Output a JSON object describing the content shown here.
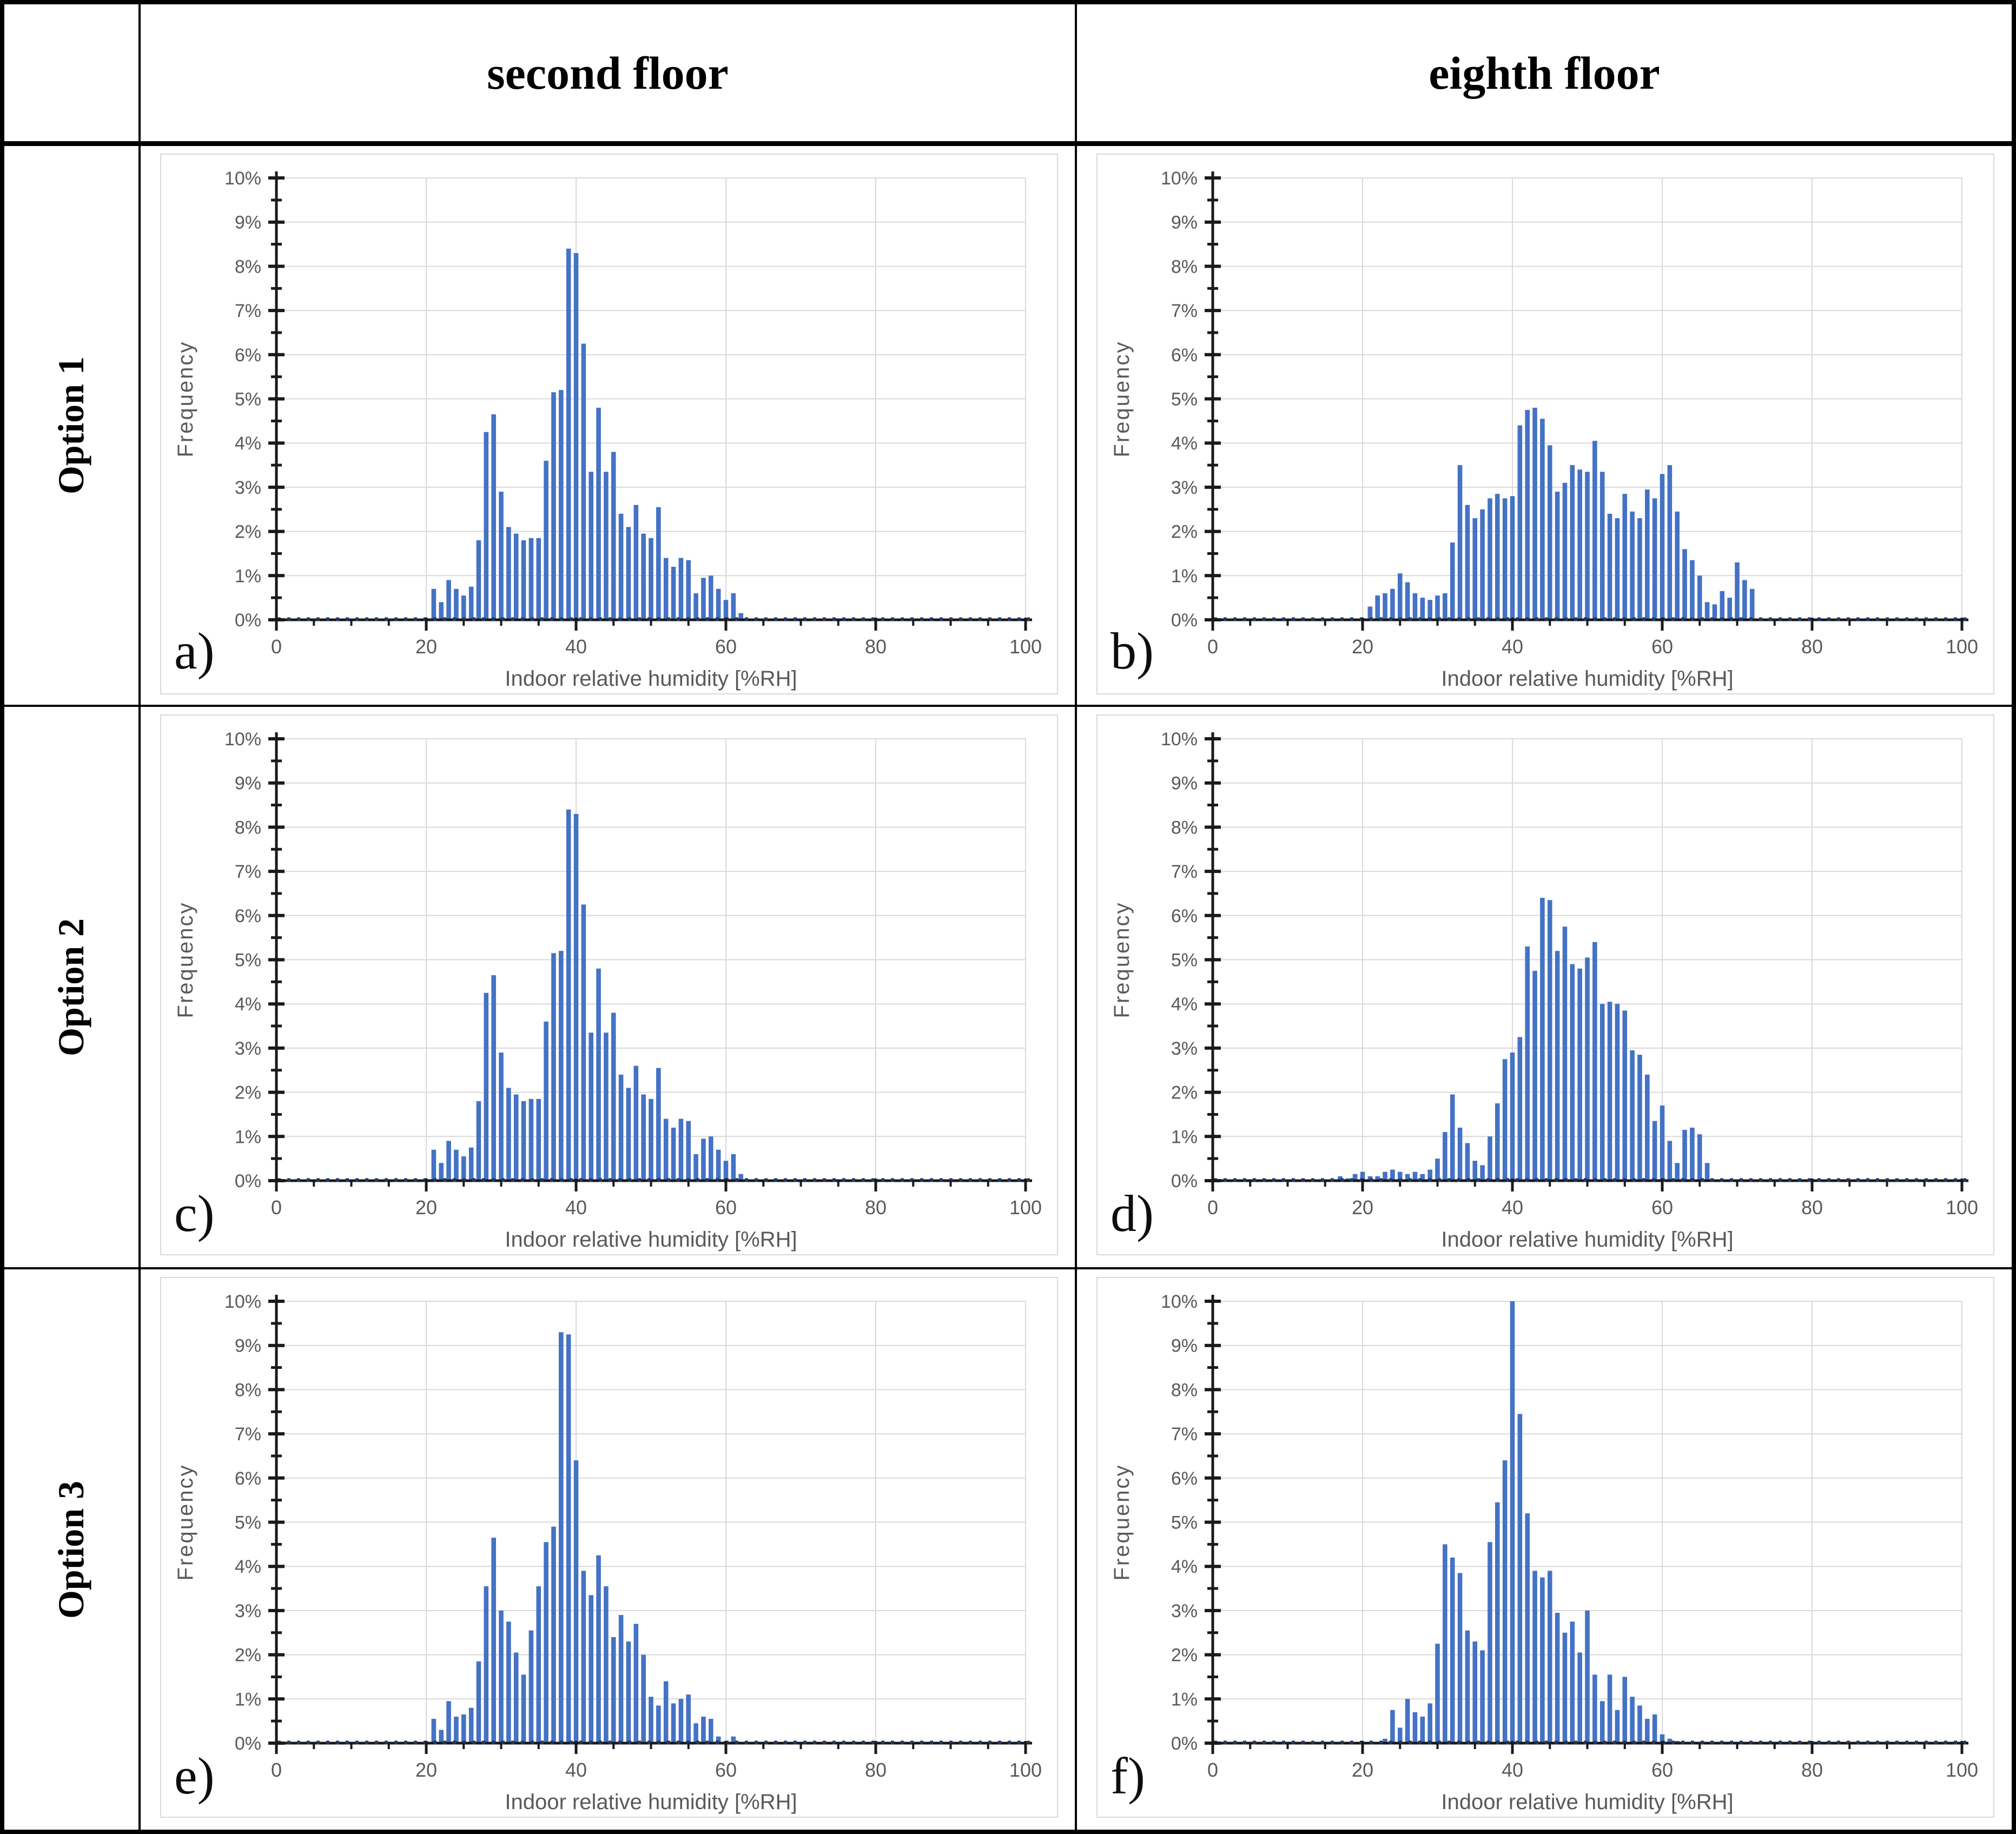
{
  "table": {
    "corner": "",
    "col_headers": [
      "second floor",
      "eighth floor"
    ],
    "row_headers": [
      "Option 1",
      "Option 2",
      "Option 3"
    ]
  },
  "colors": {
    "bar": "#4472C4",
    "baseline_dots": "#1F3864",
    "axis": "#1a1a1a",
    "gridline": "#D9D9D9",
    "chart_border": "#D9D9D9",
    "tick_label": "#595959",
    "table_border": "#000000"
  },
  "chart_axes": {
    "xlabel": "Indoor relative humidity [%RH]",
    "ylabel": "Frequency",
    "xlim": [
      0,
      100
    ],
    "ylim_percent": [
      0,
      10
    ],
    "x_tick_values": [
      0,
      20,
      40,
      60,
      80,
      100
    ],
    "x_minor_step": 5,
    "y_tick_labels": [
      "0%",
      "1%",
      "2%",
      "3%",
      "4%",
      "5%",
      "6%",
      "7%",
      "8%",
      "9%",
      "10%"
    ],
    "y_minor_step_percent": 0.5,
    "grid": true,
    "legend": "none"
  },
  "chart_data": [
    {
      "panel": "a)",
      "option": "Option 1",
      "floor": "second floor",
      "type": "bar",
      "x_start": 21,
      "bin_width": 1,
      "values": [
        0.7,
        0.4,
        0.9,
        0.7,
        0.55,
        0.75,
        1.8,
        4.25,
        4.65,
        2.9,
        2.1,
        1.95,
        1.8,
        1.85,
        1.85,
        3.6,
        5.15,
        5.2,
        8.4,
        8.3,
        6.25,
        3.35,
        4.8,
        3.35,
        3.8,
        2.4,
        2.1,
        2.6,
        1.95,
        1.85,
        2.55,
        1.4,
        1.2,
        1.4,
        1.35,
        0.6,
        0.95,
        1.0,
        0.7,
        0.45,
        0.6,
        0.15
      ]
    },
    {
      "panel": "b)",
      "option": "Option 1",
      "floor": "eighth floor",
      "type": "bar",
      "x_start": 21,
      "bin_width": 1,
      "values": [
        0.3,
        0.55,
        0.6,
        0.7,
        1.05,
        0.85,
        0.6,
        0.5,
        0.45,
        0.55,
        0.6,
        1.75,
        3.5,
        2.6,
        2.3,
        2.5,
        2.75,
        2.85,
        2.75,
        2.8,
        4.4,
        4.75,
        4.8,
        4.55,
        3.95,
        2.9,
        3.1,
        3.5,
        3.4,
        3.35,
        4.05,
        3.35,
        2.4,
        2.3,
        2.85,
        2.45,
        2.3,
        2.95,
        2.75,
        3.3,
        3.5,
        2.45,
        1.6,
        1.35,
        1.0,
        0.4,
        0.35,
        0.65,
        0.5,
        1.3,
        0.9,
        0.7
      ]
    },
    {
      "panel": "c)",
      "option": "Option 2",
      "floor": "second floor",
      "type": "bar",
      "x_start": 21,
      "bin_width": 1,
      "values": [
        0.7,
        0.4,
        0.9,
        0.7,
        0.55,
        0.75,
        1.8,
        4.25,
        4.65,
        2.9,
        2.1,
        1.95,
        1.8,
        1.85,
        1.85,
        3.6,
        5.15,
        5.2,
        8.4,
        8.3,
        6.25,
        3.35,
        4.8,
        3.35,
        3.8,
        2.4,
        2.1,
        2.6,
        1.95,
        1.85,
        2.55,
        1.4,
        1.2,
        1.4,
        1.35,
        0.6,
        0.95,
        1.0,
        0.7,
        0.45,
        0.6,
        0.15
      ]
    },
    {
      "panel": "d)",
      "option": "Option 2",
      "floor": "eighth floor",
      "type": "bar",
      "x_start": 17,
      "bin_width": 1,
      "values": [
        0.1,
        0.05,
        0.15,
        0.2,
        0.1,
        0.1,
        0.2,
        0.25,
        0.2,
        0.15,
        0.2,
        0.15,
        0.25,
        0.5,
        1.1,
        1.95,
        1.2,
        0.85,
        0.45,
        0.35,
        1.0,
        1.75,
        2.75,
        2.9,
        3.25,
        5.3,
        4.75,
        6.4,
        6.35,
        5.2,
        5.75,
        4.9,
        4.8,
        5.05,
        5.4,
        4.0,
        4.05,
        4.0,
        3.85,
        2.95,
        2.85,
        2.4,
        1.35,
        1.7,
        0.9,
        0.4,
        1.15,
        1.2,
        1.05,
        0.4
      ]
    },
    {
      "panel": "e)",
      "option": "Option 3",
      "floor": "second floor",
      "type": "bar",
      "x_start": 21,
      "bin_width": 1,
      "values": [
        0.55,
        0.3,
        0.95,
        0.6,
        0.65,
        0.8,
        1.85,
        3.55,
        4.65,
        3.0,
        2.75,
        2.05,
        1.55,
        2.55,
        3.55,
        4.55,
        4.9,
        9.3,
        9.25,
        6.4,
        3.9,
        3.35,
        4.25,
        3.55,
        2.4,
        2.9,
        2.3,
        2.7,
        2.0,
        1.05,
        0.85,
        1.4,
        0.9,
        1.0,
        1.1,
        0.45,
        0.6,
        0.55,
        0.15,
        0.05,
        0.15
      ]
    },
    {
      "panel": "f)",
      "option": "Option 3",
      "floor": "eighth floor",
      "type": "bar",
      "x_start": 23,
      "bin_width": 1,
      "values": [
        0.1,
        0.75,
        0.35,
        1.0,
        0.7,
        0.6,
        0.9,
        2.25,
        4.5,
        4.2,
        3.85,
        2.55,
        2.3,
        2.1,
        4.55,
        5.45,
        6.4,
        10.0,
        7.45,
        5.2,
        3.9,
        3.75,
        3.9,
        2.95,
        2.5,
        2.75,
        2.05,
        3.0,
        1.55,
        0.95,
        1.55,
        0.75,
        1.5,
        1.05,
        0.85,
        0.55,
        0.65,
        0.2,
        0.1,
        0.05
      ]
    }
  ]
}
